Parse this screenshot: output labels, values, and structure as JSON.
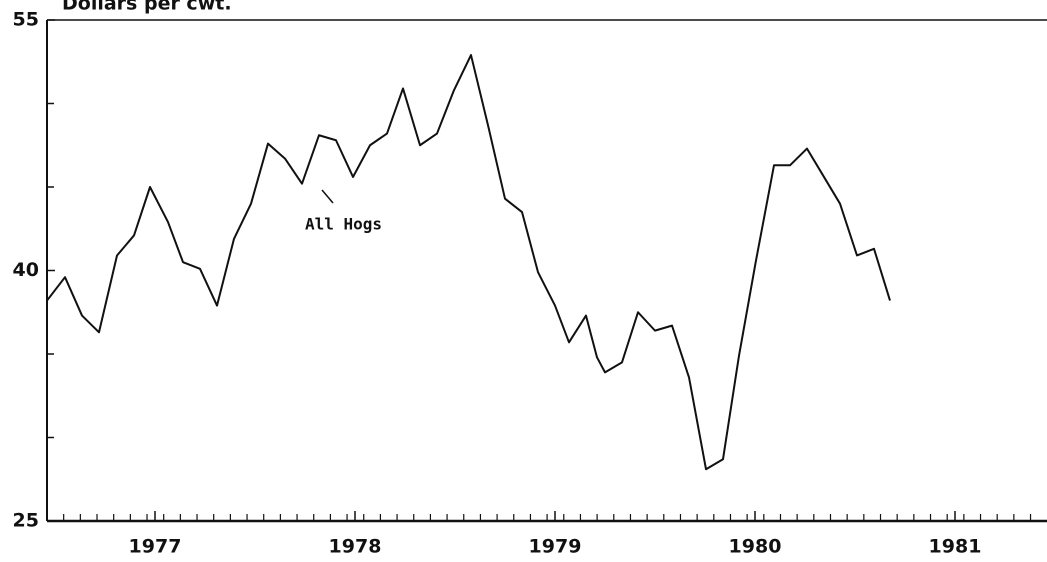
{
  "chart_data": {
    "type": "line",
    "title": "Dollars per cwt.",
    "annotation": "All Hogs",
    "x": [
      1976.46,
      1976.55,
      1976.635,
      1976.72,
      1976.81,
      1976.895,
      1976.975,
      1977.065,
      1977.14,
      1977.225,
      1977.31,
      1977.395,
      1977.48,
      1977.565,
      1977.65,
      1977.735,
      1977.82,
      1977.905,
      1977.99,
      1978.075,
      1978.16,
      1978.24,
      1978.325,
      1978.41,
      1978.495,
      1978.58,
      1978.665,
      1978.75,
      1978.835,
      1978.915,
      1979.0,
      1979.07,
      1979.155,
      1979.21,
      1979.25,
      1979.335,
      1979.415,
      1979.5,
      1979.585,
      1979.67,
      1979.755,
      1979.84,
      1979.92,
      1980.005,
      1980.095,
      1980.175,
      1980.26,
      1980.34,
      1980.425,
      1980.51,
      1980.595,
      1980.675
    ],
    "series": [
      {
        "name": "All Hogs",
        "color": "#111111",
        "values": [
          38.2,
          39.6,
          37.3,
          36.3,
          40.9,
          42.1,
          45.0,
          42.9,
          40.5,
          40.1,
          37.9,
          41.9,
          44.0,
          47.6,
          46.7,
          45.2,
          48.1,
          47.8,
          45.6,
          47.5,
          48.2,
          50.9,
          47.5,
          48.2,
          50.8,
          52.9,
          48.7,
          44.3,
          43.5,
          39.9,
          37.9,
          35.7,
          37.3,
          34.8,
          33.9,
          34.5,
          37.5,
          36.4,
          36.7,
          33.6,
          28.1,
          28.7,
          34.9,
          40.6,
          46.3,
          46.3,
          47.3,
          45.7,
          44.0,
          40.9,
          41.3,
          38.2
        ]
      }
    ],
    "xlim": [
      1976.46,
      1981.46
    ],
    "xticks": [
      1977,
      1978,
      1979,
      1980,
      1981
    ],
    "ylim": [
      25,
      55
    ],
    "yticks": [
      25,
      40,
      55
    ],
    "yminor_ticks": [
      30,
      35,
      45,
      50
    ]
  }
}
